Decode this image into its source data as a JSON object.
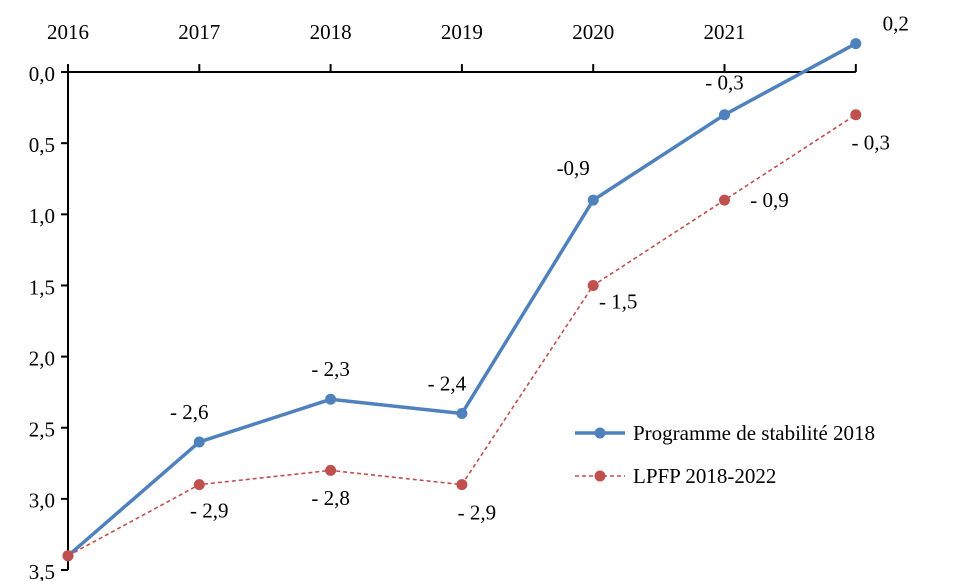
{
  "chart_data": {
    "type": "line",
    "categories": [
      "2016",
      "2017",
      "2018",
      "2019",
      "2020",
      "2021",
      null
    ],
    "series": [
      {
        "name": "Programme de stabilité 2018",
        "color": "#4f81bd",
        "dash": false,
        "values": [
          -3.4,
          -2.6,
          -2.3,
          -2.4,
          -0.9,
          -0.3,
          0.2
        ],
        "value_labels": [
          null,
          "- 2,6",
          "- 2,3",
          "- 2,4",
          "-0,9",
          "- 0,3",
          "0,2"
        ]
      },
      {
        "name": "LPFP 2018-2022",
        "color": "#c0504d",
        "dash": true,
        "values": [
          -3.4,
          -2.9,
          -2.8,
          -2.9,
          -1.5,
          -0.9,
          -0.3
        ],
        "value_labels": [
          null,
          "- 2,9",
          "- 2,8",
          "- 2,9",
          "- 1,5",
          "- 0,9",
          "- 0,3"
        ]
      }
    ],
    "ylim": [
      -3.5,
      0.2
    ],
    "yticks": [
      {
        "value": 0,
        "label": "0,0"
      },
      {
        "value": -0.5,
        "label": "0,5"
      },
      {
        "value": -1,
        "label": "1,0"
      },
      {
        "value": -1.5,
        "label": "1,5"
      },
      {
        "value": -2,
        "label": "2,0"
      },
      {
        "value": -2.5,
        "label": "2,5"
      },
      {
        "value": -3,
        "label": "3,0"
      },
      {
        "value": -3.5,
        "label": "3,5"
      }
    ],
    "grid": false,
    "legend": "right"
  }
}
